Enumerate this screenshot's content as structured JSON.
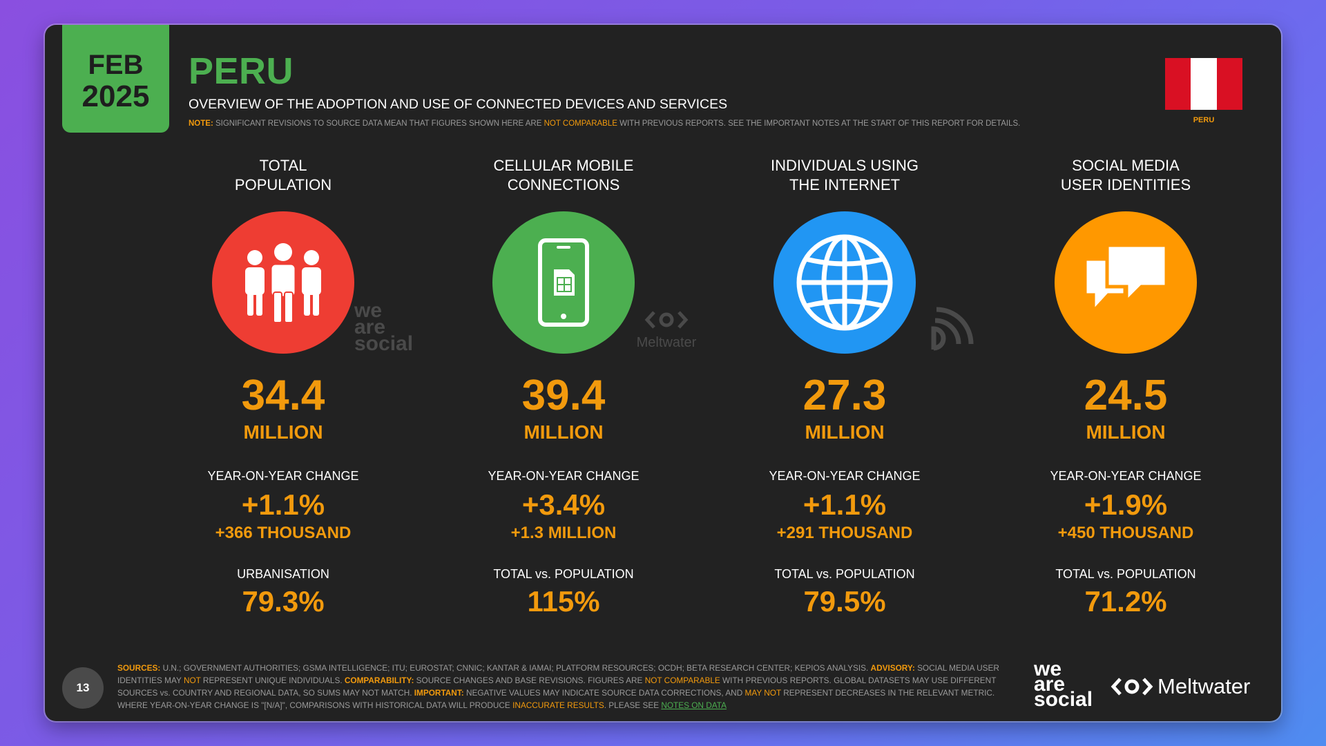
{
  "badge": {
    "month": "FEB",
    "year": "2025"
  },
  "header": {
    "title": "PERU",
    "subtitle": "OVERVIEW OF THE ADOPTION AND USE OF CONNECTED DEVICES AND SERVICES",
    "note_label": "NOTE:",
    "note_text_1": "SIGNIFICANT REVISIONS TO SOURCE DATA MEAN THAT FIGURES SHOWN HERE ARE",
    "note_highlight": "NOT COMPARABLE",
    "note_text_2": "WITH PREVIOUS REPORTS. SEE THE IMPORTANT NOTES AT THE START OF THIS REPORT FOR DETAILS."
  },
  "flag": {
    "label": "PERU",
    "colors": [
      "#d91023",
      "#ffffff",
      "#d91023"
    ]
  },
  "columns": [
    {
      "heading_1": "TOTAL",
      "heading_2": "POPULATION",
      "icon": "people-icon",
      "color": "#ee3d33",
      "value": "34.4",
      "unit": "MILLION",
      "change_label": "YEAR-ON-YEAR CHANGE",
      "change_pct": "+1.1%",
      "change_abs": "+366 THOUSAND",
      "extra_label": "URBANISATION",
      "extra_value": "79.3%"
    },
    {
      "heading_1": "CELLULAR MOBILE",
      "heading_2": "CONNECTIONS",
      "icon": "mobile-phone-icon",
      "color": "#4caf50",
      "value": "39.4",
      "unit": "MILLION",
      "change_label": "YEAR-ON-YEAR CHANGE",
      "change_pct": "+3.4%",
      "change_abs": "+1.3 MILLION",
      "extra_label": "TOTAL vs. POPULATION",
      "extra_value": "115%"
    },
    {
      "heading_1": "INDIVIDUALS USING",
      "heading_2": "THE INTERNET",
      "icon": "globe-icon",
      "color": "#2196f3",
      "value": "27.3",
      "unit": "MILLION",
      "change_label": "YEAR-ON-YEAR CHANGE",
      "change_pct": "+1.1%",
      "change_abs": "+291 THOUSAND",
      "extra_label": "TOTAL vs. POPULATION",
      "extra_value": "79.5%"
    },
    {
      "heading_1": "SOCIAL MEDIA",
      "heading_2": "USER IDENTITIES",
      "icon": "chat-bubbles-icon",
      "color": "#ff9800",
      "value": "24.5",
      "unit": "MILLION",
      "change_label": "YEAR-ON-YEAR CHANGE",
      "change_pct": "+1.9%",
      "change_abs": "+450 THOUSAND",
      "extra_label": "TOTAL vs. POPULATION",
      "extra_value": "71.2%"
    }
  ],
  "watermarks": {
    "was_1": "we",
    "was_2": "are",
    "was_3": "social",
    "meltwater": "Meltwater"
  },
  "footer": {
    "page_number": "13",
    "s_label": "SOURCES:",
    "s_text": "U.N.; GOVERNMENT AUTHORITIES; GSMA INTELLIGENCE; ITU; EUROSTAT; CNNIC; KANTAR & IAMAI; PLATFORM RESOURCES; OCDH; BETA RESEARCH CENTER; KEPIOS ANALYSIS.",
    "a_label": "ADVISORY:",
    "a_text_1": "SOCIAL MEDIA USER IDENTITIES MAY",
    "a_hl": "NOT",
    "a_text_2": "REPRESENT UNIQUE INDIVIDUALS.",
    "c_label": "COMPARABILITY:",
    "c_text_1": "SOURCE CHANGES AND BASE REVISIONS. FIGURES ARE",
    "c_hl": "NOT COMPARABLE",
    "c_text_2": "WITH PREVIOUS REPORTS. GLOBAL DATASETS MAY USE DIFFERENT SOURCES vs. COUNTRY AND REGIONAL DATA, SO SUMS MAY NOT MATCH.",
    "i_label": "IMPORTANT:",
    "i_text_1": "NEGATIVE VALUES MAY INDICATE SOURCE DATA CORRECTIONS, AND",
    "i_hl": "MAY NOT",
    "i_text_2": "REPRESENT DECREASES IN THE RELEVANT METRIC. WHERE YEAR-ON-YEAR CHANGE IS \"[N/A]\", COMPARISONS WITH HISTORICAL DATA WILL PRODUCE",
    "i_hl2": "INACCURATE RESULTS",
    "i_text_3": ". PLEASE SEE",
    "link": "NOTES ON DATA"
  },
  "logos": {
    "was_1": "we",
    "was_2": "are",
    "was_3": "social",
    "meltwater": "Meltwater"
  }
}
